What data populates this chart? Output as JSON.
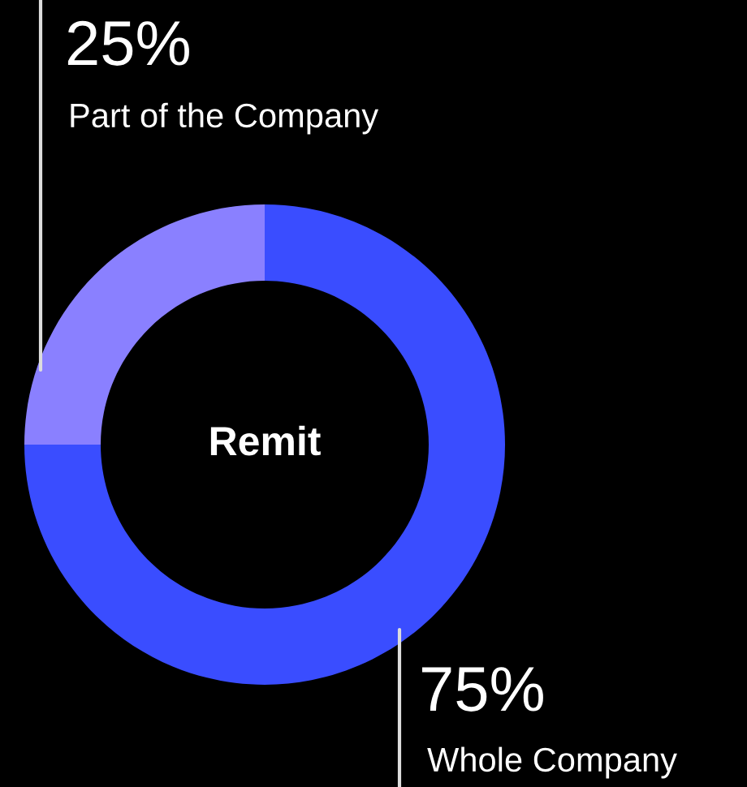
{
  "chart_data": {
    "type": "donut",
    "categories": [
      "Whole Company",
      "Part of the Company"
    ],
    "values": [
      75,
      25
    ],
    "colors": [
      "#3a4dff",
      "#8a80ff"
    ],
    "value_labels": [
      "75%",
      "25%"
    ],
    "annotations": [
      "Remit"
    ],
    "legend": false
  }
}
